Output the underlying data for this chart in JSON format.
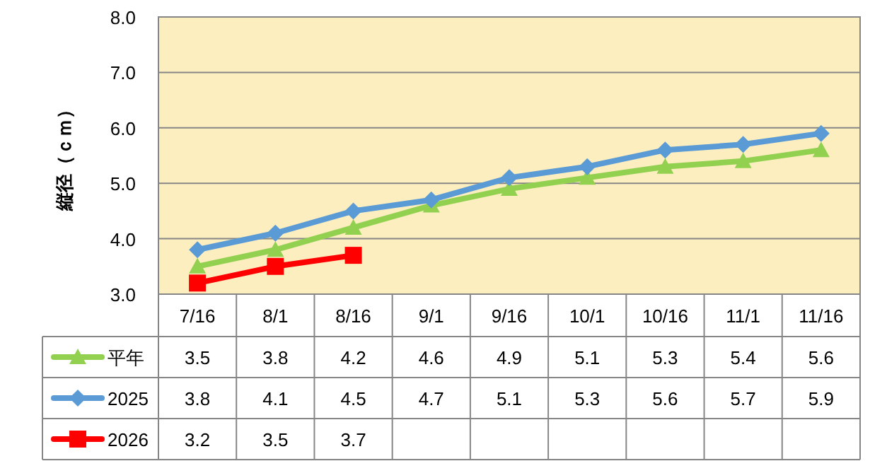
{
  "chart_data": {
    "type": "line",
    "ylabel": "縦径（ｃｍ）",
    "categories": [
      "7/16",
      "8/1",
      "8/16",
      "9/1",
      "9/16",
      "10/1",
      "10/16",
      "11/1",
      "11/16"
    ],
    "series": [
      {
        "name": "平年",
        "color": "#92d050",
        "marker": "triangle",
        "values": [
          3.5,
          3.8,
          4.2,
          4.6,
          4.9,
          5.1,
          5.3,
          5.4,
          5.6
        ]
      },
      {
        "name": "2025",
        "color": "#5b9bd5",
        "marker": "diamond",
        "values": [
          3.8,
          4.1,
          4.5,
          4.7,
          5.1,
          5.3,
          5.6,
          5.7,
          5.9
        ]
      },
      {
        "name": "2026",
        "color": "#ff0000",
        "marker": "square",
        "values": [
          3.2,
          3.5,
          3.7,
          null,
          null,
          null,
          null,
          null,
          null
        ]
      }
    ],
    "ylim": [
      3.0,
      8.0
    ],
    "yticks": [
      {
        "value": 3,
        "label": "3.0"
      },
      {
        "value": 4,
        "label": "4.0"
      },
      {
        "value": 5,
        "label": "5.0"
      },
      {
        "value": 6,
        "label": "6.0"
      },
      {
        "value": 7,
        "label": "7.0"
      },
      {
        "value": 8,
        "label": "8.0"
      }
    ],
    "grid": "y",
    "legend": "bottom left",
    "data_labels": true
  }
}
